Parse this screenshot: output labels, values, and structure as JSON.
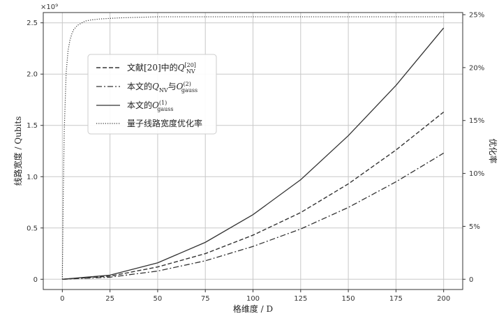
{
  "chart_data": {
    "type": "line",
    "xlabel": "格维度 / D",
    "ylabel_left": "线路宽度 / Qubits",
    "ylabel_right": "优化率",
    "y_multiplier": "×10⁹",
    "xlim": [
      -10,
      210
    ],
    "ylim_left": [
      -0.1,
      2.6
    ],
    "ylim_right": [
      -0.97,
      25.2
    ],
    "x_ticks": [
      0,
      25,
      50,
      75,
      100,
      125,
      150,
      175,
      200
    ],
    "y_ticks_left": [
      0,
      0.5,
      1.0,
      1.5,
      2.0,
      2.5
    ],
    "y_ticks_left_labels": [
      "0",
      "0.5",
      "1.0",
      "1.5",
      "2.0",
      "2.5"
    ],
    "y_ticks_right": [
      0,
      5,
      10,
      15,
      20,
      25
    ],
    "y_ticks_right_labels": [
      "0",
      "5%",
      "10%",
      "15%",
      "20%",
      "25%"
    ],
    "grid": true,
    "legend_position": "upper-left",
    "series": [
      {
        "name": "文献[20]中的Q_NV^[20]",
        "label_html": {
          "base": "文献[20]中的",
          "var": "Q",
          "sub": "NV",
          "sup": "[20]"
        },
        "axis": "left",
        "style": "dashed",
        "x": [
          0,
          25,
          50,
          75,
          100,
          125,
          150,
          175,
          200
        ],
        "y": [
          0,
          0.03,
          0.12,
          0.25,
          0.43,
          0.65,
          0.93,
          1.26,
          1.63
        ]
      },
      {
        "name": "本文的Q_NV与O_gauss^(2)",
        "label_html": {
          "base": "本文的",
          "var": "Q",
          "sub": "NV",
          "mid": "与",
          "var2": "O",
          "sub2": "gauss",
          "sup2": "(2)"
        },
        "axis": "left",
        "style": "dashdot",
        "x": [
          0,
          25,
          50,
          75,
          100,
          125,
          150,
          175,
          200
        ],
        "y": [
          0,
          0.02,
          0.08,
          0.18,
          0.32,
          0.49,
          0.7,
          0.95,
          1.23
        ]
      },
      {
        "name": "本文的O_gauss^(1)",
        "label_html": {
          "base": "本文的",
          "var": "O",
          "sub": "gauss",
          "sup": "(1)"
        },
        "axis": "left",
        "style": "solid",
        "x": [
          0,
          25,
          50,
          75,
          100,
          125,
          150,
          175,
          200
        ],
        "y": [
          0,
          0.04,
          0.16,
          0.36,
          0.63,
          0.97,
          1.4,
          1.89,
          2.45
        ]
      },
      {
        "name": "量子线路宽度优化率",
        "axis": "right",
        "style": "dotted",
        "x": [
          0,
          0.5,
          1,
          2,
          3,
          4,
          5,
          6,
          8,
          10,
          12,
          15,
          20,
          30,
          40,
          50,
          75,
          100,
          150,
          200
        ],
        "y": [
          0,
          8.0,
          14.0,
          19.5,
          21.6,
          22.6,
          23.2,
          23.6,
          24.0,
          24.2,
          24.4,
          24.5,
          24.6,
          24.7,
          24.75,
          24.8,
          24.8,
          24.8,
          24.8,
          24.8
        ]
      }
    ]
  }
}
